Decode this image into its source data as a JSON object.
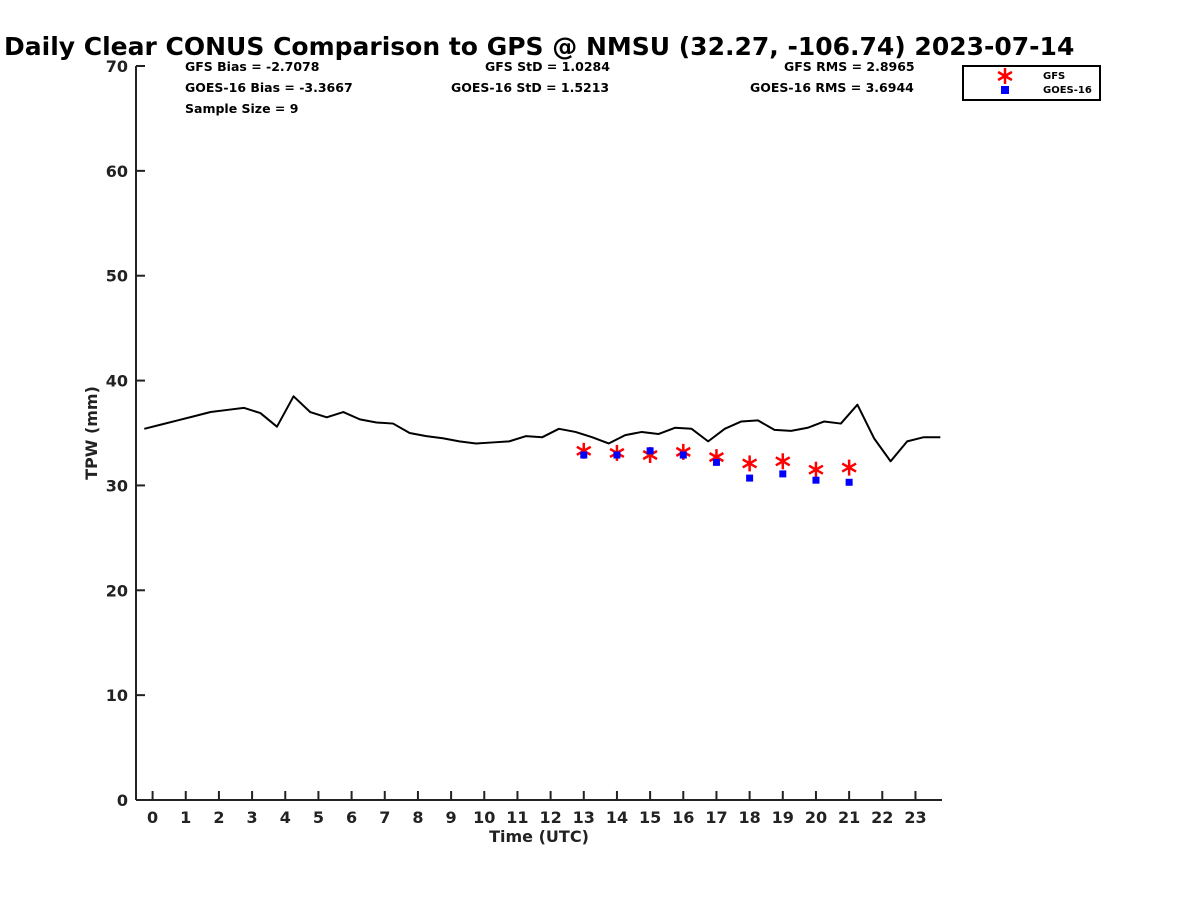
{
  "chart_data": {
    "type": "line",
    "title": "Daily Clear CONUS Comparison to GPS @ NMSU (32.27, -106.74) 2023-07-14",
    "xlabel": "Time (UTC)",
    "ylabel": "TPW (mm)",
    "xlim": [
      -0.5,
      23.8
    ],
    "ylim": [
      0,
      70
    ],
    "x_ticks": [
      "0",
      "1",
      "2",
      "3",
      "4",
      "5",
      "6",
      "7",
      "8",
      "9",
      "10",
      "11",
      "12",
      "13",
      "14",
      "15",
      "16",
      "17",
      "18",
      "19",
      "20",
      "21",
      "22",
      "23"
    ],
    "y_ticks": [
      "0",
      "10",
      "20",
      "30",
      "40",
      "50",
      "60",
      "70"
    ],
    "grid": false,
    "legend_position": "top-right",
    "stats": {
      "gfs_bias": "GFS Bias = -2.7078",
      "goes_bias": "GOES-16 Bias = -3.3667",
      "sample_size": "Sample Size = 9",
      "gfs_std": "GFS StD = 1.0284",
      "goes_std": "GOES-16 StD = 1.5213",
      "gfs_rms": "GFS RMS = 2.8965",
      "goes_rms": "GOES-16 RMS = 3.6944"
    },
    "series": [
      {
        "name": "",
        "style": "line",
        "color": "#000000",
        "x": [
          -0.25,
          0.25,
          0.75,
          1.25,
          1.75,
          2.25,
          2.75,
          3.25,
          3.75,
          4.25,
          4.75,
          5.25,
          5.75,
          6.25,
          6.75,
          7.25,
          7.75,
          8.25,
          8.75,
          9.25,
          9.75,
          10.25,
          10.75,
          11.25,
          11.75,
          12.25,
          12.75,
          13.25,
          13.75,
          14.25,
          14.75,
          15.25,
          15.75,
          16.25,
          16.75,
          17.25,
          17.75,
          18.25,
          18.75,
          19.25,
          19.75,
          20.25,
          20.75,
          21.25,
          21.75,
          22.25,
          22.75,
          23.25,
          23.75
        ],
        "y": [
          35.4,
          35.8,
          36.2,
          36.6,
          37.0,
          37.2,
          37.4,
          36.9,
          35.6,
          38.5,
          37.0,
          36.5,
          37.0,
          36.3,
          36.0,
          35.9,
          35.0,
          34.7,
          34.5,
          34.2,
          34.0,
          34.1,
          34.2,
          34.7,
          34.6,
          35.4,
          35.1,
          34.6,
          34.0,
          34.8,
          35.1,
          34.9,
          35.5,
          35.4,
          34.2,
          35.4,
          36.1,
          36.2,
          35.3,
          35.2,
          35.5,
          36.1,
          35.9,
          37.7,
          34.5,
          32.3,
          34.2,
          34.6,
          34.6
        ]
      },
      {
        "name": "GFS",
        "style": "star",
        "color": "#ff0000",
        "x": [
          13,
          14,
          15,
          16,
          17,
          18,
          19,
          20,
          21
        ],
        "y": [
          33.3,
          33.1,
          32.9,
          33.2,
          32.7,
          32.1,
          32.3,
          31.5,
          31.7
        ]
      },
      {
        "name": "GOES-16",
        "style": "square",
        "color": "#0000ff",
        "x": [
          13,
          14,
          15,
          16,
          17,
          18,
          19,
          20,
          21
        ],
        "y": [
          32.9,
          32.9,
          33.3,
          32.9,
          32.2,
          30.7,
          31.1,
          30.5,
          30.3
        ]
      }
    ]
  }
}
